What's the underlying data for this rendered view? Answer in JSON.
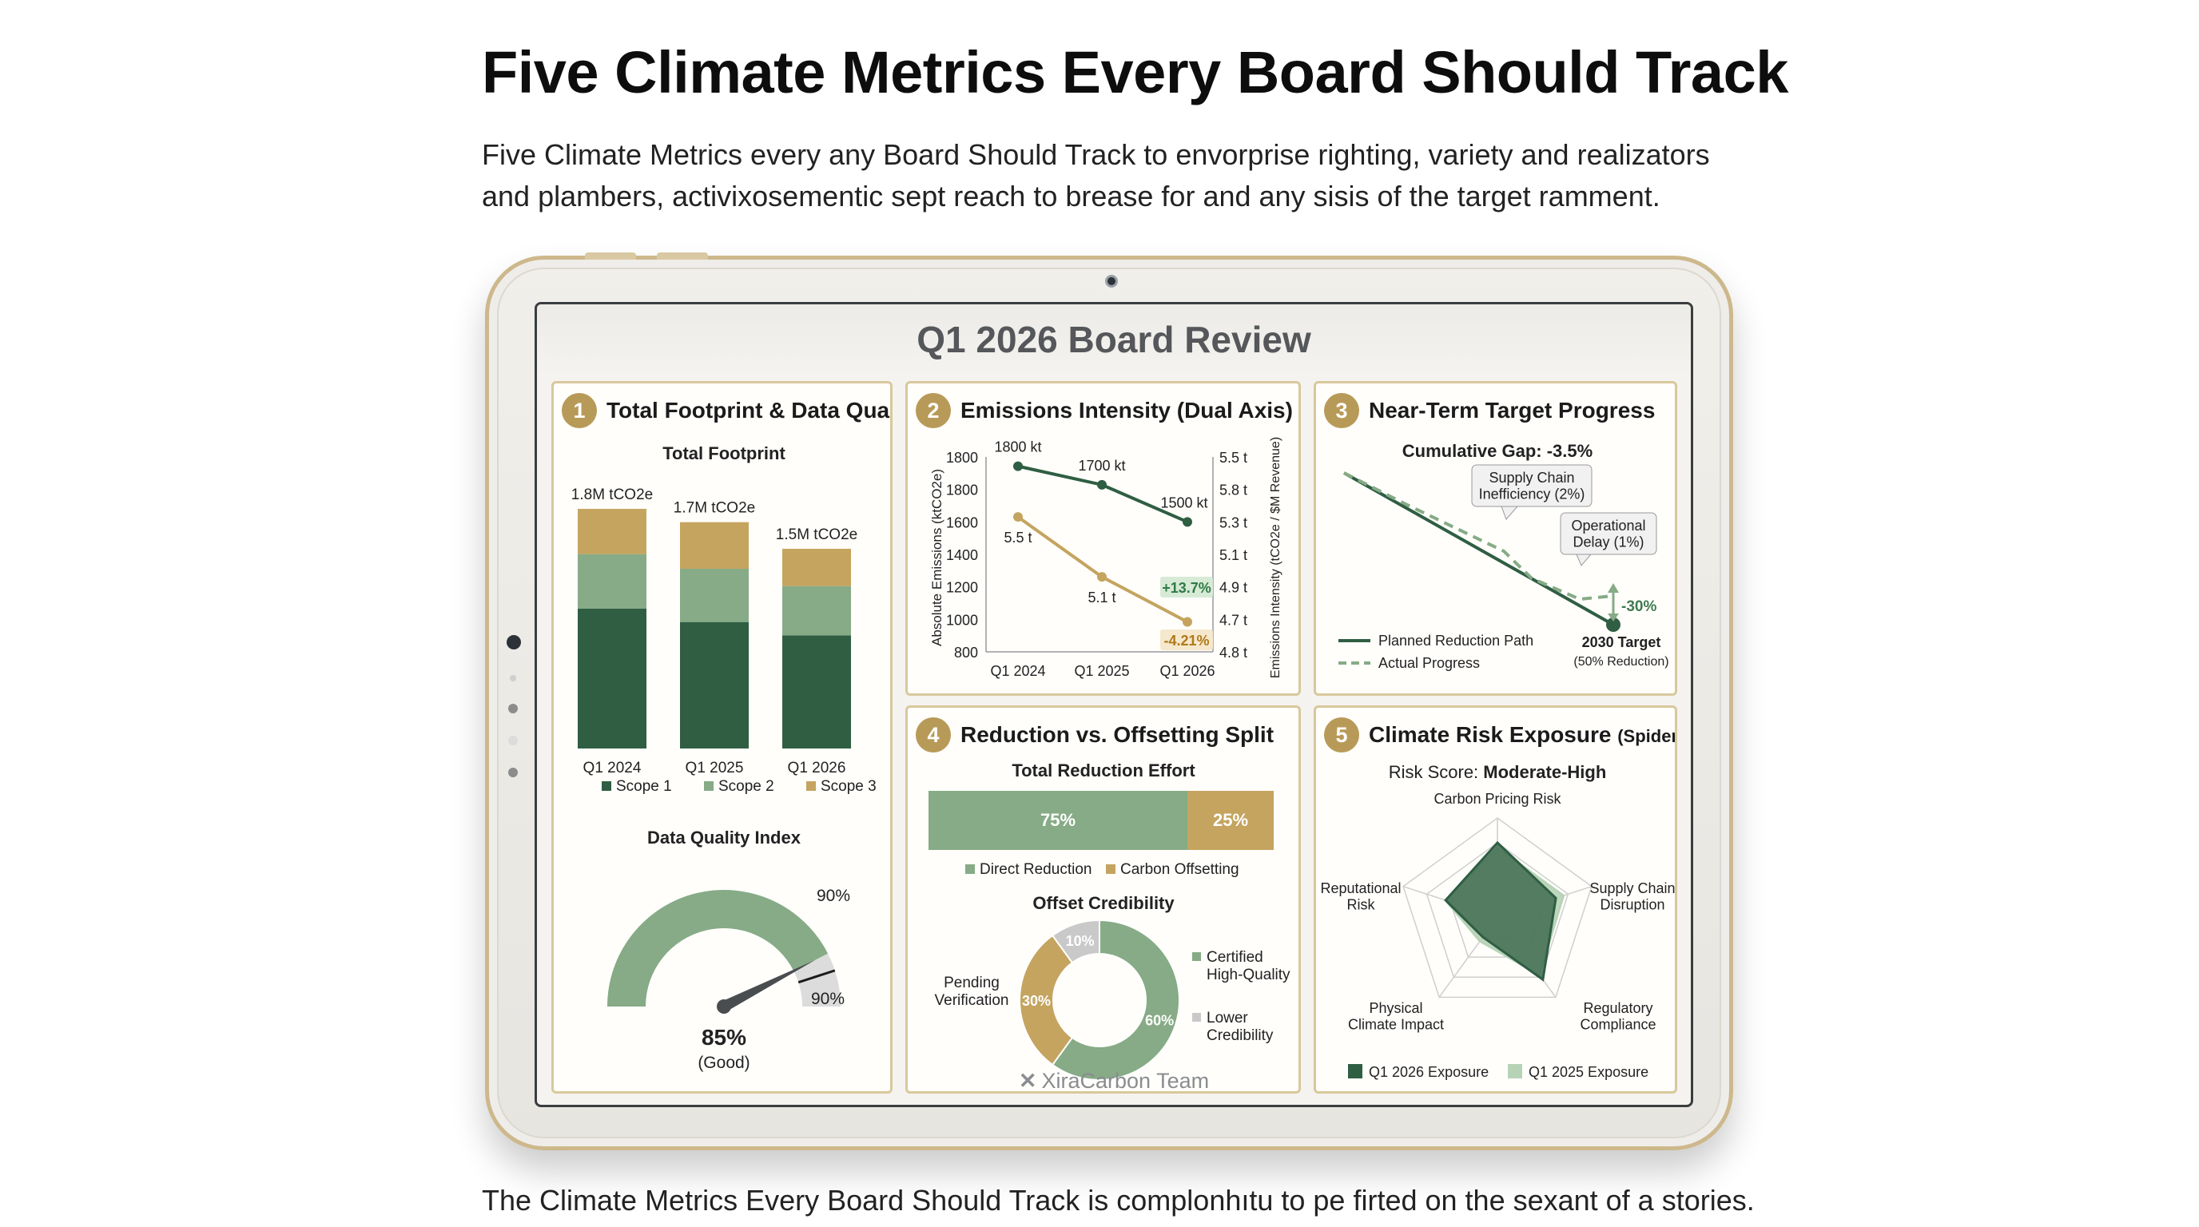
{
  "article": {
    "title": "Five Climate Metrics Every Board Should Track",
    "intro": "Five Climate Metrics every any Board Should Track to envorprise righting, variety and realizators and plambers, activixosementic sept reach to brease for and any sisis of the target ramment.",
    "footer": "The Climate Metrics Every Board Should Track is complonhıtu to pe firted on the sexant of a stories."
  },
  "dashboard": {
    "title": "Q1 2026 Board Review",
    "brand": "XiraCarbon Team",
    "colors": {
      "dark_green": "#2f5e43",
      "mid_green": "#86ab86",
      "gold": "#c4a45f",
      "gray": "#c9c9c9",
      "card_border": "#d8c89c"
    }
  },
  "cards": [
    {
      "number": "1",
      "title": "Total Footprint & Data Quality"
    },
    {
      "number": "2",
      "title": "Emissions Intensity (Dual Axis)"
    },
    {
      "number": "3",
      "title": "Near-Term Target Progress"
    },
    {
      "number": "4",
      "title": "Reduction vs. Offsetting Split"
    },
    {
      "number": "5",
      "title": "Climate Risk Exposure",
      "title_suffix": "(Spider Chart)"
    }
  ],
  "chart_data": [
    {
      "id": "footprint",
      "type": "bar",
      "title": "Total Footprint",
      "stacked": true,
      "categories": [
        "Q1 2024",
        "Q1 2025",
        "Q1 2026"
      ],
      "totals_labels": [
        "1.8M tCO2e",
        "1.7M tCO2e",
        "1.5M tCO2e"
      ],
      "series": [
        {
          "name": "Scope 1",
          "color": "#2f5e43",
          "values": [
            1.05,
            0.95,
            0.85
          ]
        },
        {
          "name": "Scope 2",
          "color": "#86ab86",
          "values": [
            0.41,
            0.4,
            0.37
          ]
        },
        {
          "name": "Scope 3",
          "color": "#c4a45f",
          "values": [
            0.34,
            0.35,
            0.28
          ]
        }
      ],
      "ylim": [
        0,
        1.8
      ]
    },
    {
      "id": "data_quality",
      "type": "gauge",
      "title": "Data Quality Index",
      "value": 85,
      "value_label": "85%",
      "status": "(Good)",
      "target_label_top": "90%",
      "target_label_side": "90%",
      "range": [
        0,
        100
      ]
    },
    {
      "id": "intensity",
      "type": "line",
      "categories": [
        "Q1 2024",
        "Q1 2025",
        "Q1 2026"
      ],
      "ylabel_left": "Absolute Emissions (ktCO2e)",
      "ylabel_right": "Emissions Intensity (tCO2e / $M Revenue)",
      "left_ticks": [
        "1800",
        "1800",
        "1600",
        "1400",
        "1200",
        "1000",
        "800"
      ],
      "right_ticks": [
        "5.5 t",
        "5.8 t",
        "5.3 t",
        "5.1 t",
        "4.9 t",
        "4.7 t",
        "4.8 t"
      ],
      "series": [
        {
          "name": "Absolute Emissions",
          "axis": "left",
          "color": "#2f5e43",
          "values": [
            1800,
            1700,
            1500
          ],
          "labels": [
            "1800 kt",
            "1700 kt",
            "1500 kt"
          ]
        },
        {
          "name": "Emissions Intensity",
          "axis": "right",
          "color": "#c4a45f",
          "values": [
            5.5,
            5.1,
            4.8
          ],
          "labels": [
            "5.5 t",
            "5.1 t",
            "4.8 t"
          ]
        }
      ],
      "badges": [
        {
          "text": "+13.7%",
          "color": "#2f7a45",
          "bg": "#d7ead6"
        },
        {
          "text": "-4.21%",
          "color": "#b07a1a",
          "bg": "#f6e8cc"
        }
      ]
    },
    {
      "id": "target_progress",
      "type": "line",
      "subtitle": "Cumulative Gap: -3.5%",
      "series": [
        {
          "name": "Planned Reduction Path",
          "style": "solid",
          "color": "#2f5e43"
        },
        {
          "name": "Actual Progress",
          "style": "dashed",
          "color": "#86ab86"
        }
      ],
      "callouts": [
        "Supply Chain\nInefficiency (2%)",
        "Operational\nDelay (1%)"
      ],
      "gap_label": "-30%",
      "target_label": "2030 Target",
      "target_sub": "(50% Reduction)"
    },
    {
      "id": "reduction_split",
      "type": "bar",
      "title": "Total Reduction Effort",
      "categories": [
        "Direct Reduction",
        "Carbon Offsetting"
      ],
      "values": [
        75,
        25
      ],
      "value_labels": [
        "75%",
        "25%"
      ],
      "colors": [
        "#86ab86",
        "#c4a45f"
      ]
    },
    {
      "id": "offset_credibility",
      "type": "pie",
      "title": "Offset Credibility",
      "slices": [
        {
          "name": "Certified High-Quality",
          "value": 60,
          "label": "60%",
          "color": "#86ab86"
        },
        {
          "name": "Pending Verification",
          "value": 30,
          "label": "30%",
          "color": "#c4a45f"
        },
        {
          "name": "Lower Credibility",
          "value": 10,
          "label": "10%",
          "color": "#c9c9c9"
        }
      ],
      "legend": [
        "Certified\nHigh-Quality",
        "Lower\nCredibility"
      ],
      "side_label": "Pending\nVerification"
    },
    {
      "id": "risk_spider",
      "type": "radar",
      "risk_label": "Risk Score:",
      "risk_value": "Moderate-High",
      "axes": [
        "Carbon Pricing Risk",
        "Supply Chain\nDisruption",
        "Regulatory\nCompliance",
        "Physical\nClimate Impact",
        "Reputational\nRisk"
      ],
      "series": [
        {
          "name": "Q1 2026 Exposure",
          "color": "#2f5e43",
          "values": [
            0.75,
            0.62,
            0.78,
            0.25,
            0.55
          ]
        },
        {
          "name": "Q1 2025 Exposure",
          "color": "#b7d3b6",
          "values": [
            0.7,
            0.7,
            0.72,
            0.3,
            0.55
          ]
        }
      ],
      "max": 1
    }
  ]
}
